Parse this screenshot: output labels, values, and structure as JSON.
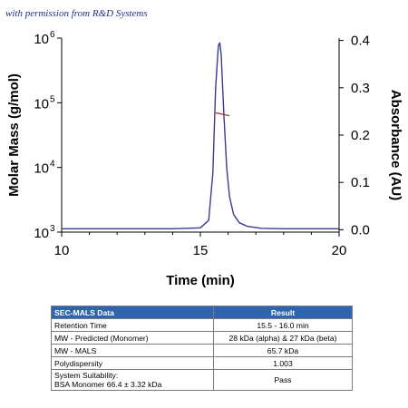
{
  "credit": "with permission from R&D Systems",
  "colors": {
    "signal": "#3b3b8f",
    "molar_mass": "#b23a3a",
    "header_bg": "#2f64b3"
  },
  "chart_data": {
    "type": "line",
    "xlabel": "Time (min)",
    "ylabel_left": "Molar Mass (g/mol)",
    "ylabel_right": "Absorbance (AU)",
    "xlim": [
      10,
      20
    ],
    "ylim_left": [
      1000,
      1000000
    ],
    "ylim_right": [
      -0.005,
      0.405
    ],
    "log_left": true,
    "x_ticks": [
      "10",
      "15",
      "20"
    ],
    "y_left_ticks": [
      {
        "base": "10",
        "exp": "3"
      },
      {
        "base": "10",
        "exp": "4"
      },
      {
        "base": "10",
        "exp": "5"
      },
      {
        "base": "10",
        "exp": "6"
      }
    ],
    "y_right_ticks": [
      "0.0",
      "0.1",
      "0.2",
      "0.3",
      "0.4"
    ],
    "grid": false,
    "series": [
      {
        "axis": "right",
        "x": [
          10,
          14,
          15,
          15.3,
          15.45,
          15.55,
          15.65,
          15.7,
          15.75,
          15.85,
          15.95,
          16.05,
          16.2,
          16.4,
          16.7,
          17.2,
          18,
          20
        ],
        "y": [
          0.002,
          0.002,
          0.004,
          0.02,
          0.12,
          0.3,
          0.39,
          0.395,
          0.37,
          0.24,
          0.13,
          0.07,
          0.032,
          0.015,
          0.007,
          0.003,
          0.002,
          0.002
        ]
      },
      {
        "axis": "left",
        "x": [
          15.55,
          16.05
        ],
        "y": [
          70000,
          63000
        ]
      }
    ]
  },
  "table": {
    "headers": [
      "SEC-MALS Data",
      "Result"
    ],
    "rows": [
      {
        "label": "Retention Time",
        "value": "15.5 - 16.0 min"
      },
      {
        "label": "MW - Predicted (Monomer)",
        "value": "28 kDa (alpha) & 27 kDa (beta)"
      },
      {
        "label": "MW - MALS",
        "value": "65.7 kDa"
      },
      {
        "label": "Polydispersity",
        "value": "1.003"
      }
    ],
    "last_row": {
      "label_line1": "System Suitability:",
      "label_line2": "BSA Monomer 66.4 ± 3.32 kDa",
      "value": "Pass"
    }
  }
}
